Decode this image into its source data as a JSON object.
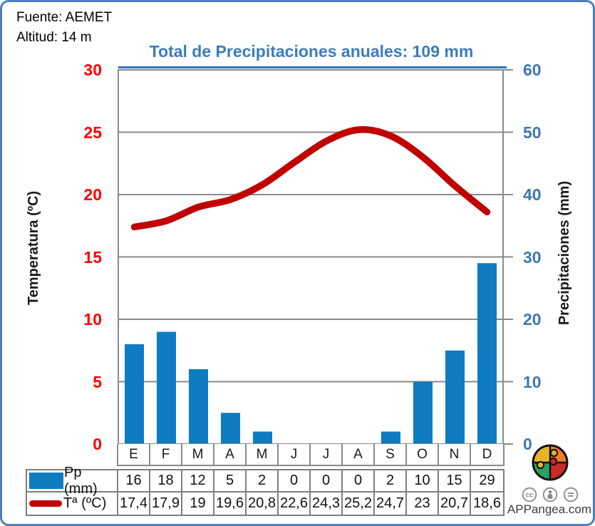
{
  "header": {
    "source": "Fuente: AEMET",
    "altitude": "Altitud: 14 m"
  },
  "chart_data": {
    "type": "combo",
    "title": "Total de Precipitaciones anuales: 109 mm",
    "categories": [
      "E",
      "F",
      "M",
      "A",
      "M",
      "J",
      "J",
      "A",
      "S",
      "O",
      "N",
      "D"
    ],
    "series": [
      {
        "name": "Pp (mm)",
        "type": "bar",
        "axis": "right",
        "color": "#0d7cc1",
        "values": [
          16,
          18,
          12,
          5,
          2,
          0,
          0,
          0,
          2,
          10,
          15,
          29
        ]
      },
      {
        "name": "Tª (ºC)",
        "type": "line",
        "axis": "left",
        "color": "#c00000",
        "values": [
          17.4,
          17.9,
          19,
          19.6,
          20.8,
          22.6,
          24.3,
          25.2,
          24.7,
          23,
          20.7,
          18.6
        ]
      }
    ],
    "left_axis": {
      "label": "Temperatura (ºC)",
      "range": [
        0,
        30
      ],
      "ticks": [
        30,
        25,
        20,
        15,
        10,
        5,
        0
      ],
      "color": "#ff0000"
    },
    "right_axis": {
      "label": "Precipitaciones (mm)",
      "range": [
        0,
        60
      ],
      "ticks": [
        60,
        50,
        40,
        30,
        20,
        10,
        0
      ],
      "color": "#3e77b1"
    },
    "grid": true,
    "legend_position": "table-bottom"
  },
  "table": {
    "rows": [
      {
        "label": "Pp (mm)",
        "swatch": "bar",
        "values": [
          "16",
          "18",
          "12",
          "5",
          "2",
          "0",
          "0",
          "0",
          "2",
          "10",
          "15",
          "29"
        ]
      },
      {
        "label": "Tª (ºC)",
        "swatch": "line",
        "values": [
          "17,4",
          "17,9",
          "19",
          "19,6",
          "20,8",
          "22,6",
          "24,3",
          "25,2",
          "24,7",
          "23",
          "20,7",
          "18,6"
        ]
      }
    ]
  },
  "footer": {
    "brand": "APPangea.com",
    "license_icons": [
      "cc-icon",
      "attribution-icon",
      "equals-icon"
    ]
  },
  "colors": {
    "grid": "#8a8a8a",
    "frame_border": "#4d7ec0",
    "title": "#3c7cbc",
    "underline": "#2e75b6"
  }
}
